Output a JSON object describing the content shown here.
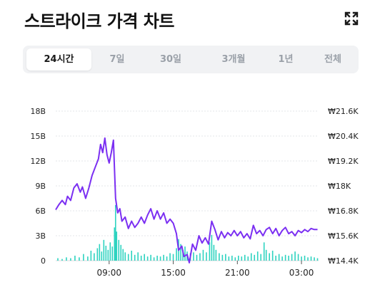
{
  "header": {
    "title": "스트라이크 가격 차트",
    "expand_icon": "expand-icon"
  },
  "tabs": [
    {
      "label": "24시간",
      "active": true
    },
    {
      "label": "7일",
      "active": false
    },
    {
      "label": "30일",
      "active": false
    },
    {
      "label": "3개월",
      "active": false
    },
    {
      "label": "1년",
      "active": false
    },
    {
      "label": "전체",
      "active": false
    }
  ],
  "colors": {
    "price_line": "#7b2ff2",
    "volume_bar": "#2ed3c0",
    "grid": "#e3e5e8"
  },
  "chart_data": {
    "type": "line",
    "x_tick_labels": [
      "09:00",
      "15:00",
      "21:00",
      "03:00"
    ],
    "left_axis": {
      "tick_labels": [
        "18B",
        "15B",
        "12B",
        "9B",
        "6B",
        "3B",
        "0"
      ],
      "ylim": [
        0,
        18
      ]
    },
    "right_axis": {
      "tick_labels": [
        "₩21.6K",
        "₩20.4K",
        "₩19.2K",
        "₩18K",
        "₩16.8K",
        "₩15.6K",
        "₩14.4K"
      ],
      "ylim": [
        14.4,
        21.6
      ]
    },
    "x_hours_range": [
      0,
      24.6
    ],
    "x_tick_hours": [
      5,
      11,
      17,
      23
    ],
    "grid": true,
    "series": [
      {
        "kind": "line",
        "points": [
          [
            0.0,
            16.85
          ],
          [
            0.3,
            17.1
          ],
          [
            0.6,
            17.3
          ],
          [
            0.9,
            17.1
          ],
          [
            1.1,
            17.5
          ],
          [
            1.4,
            17.3
          ],
          [
            1.7,
            17.9
          ],
          [
            2.0,
            18.1
          ],
          [
            2.3,
            17.7
          ],
          [
            2.5,
            17.95
          ],
          [
            2.8,
            17.4
          ],
          [
            3.1,
            17.9
          ],
          [
            3.4,
            18.5
          ],
          [
            3.7,
            18.9
          ],
          [
            4.0,
            19.3
          ],
          [
            4.2,
            20.0
          ],
          [
            4.4,
            19.6
          ],
          [
            4.6,
            20.3
          ],
          [
            4.8,
            19.5
          ],
          [
            5.0,
            19.1
          ],
          [
            5.2,
            19.6
          ],
          [
            5.4,
            20.2
          ],
          [
            5.6,
            17.4
          ],
          [
            5.8,
            16.7
          ],
          [
            6.0,
            16.9
          ],
          [
            6.2,
            16.3
          ],
          [
            6.5,
            16.5
          ],
          [
            6.8,
            15.95
          ],
          [
            7.1,
            16.3
          ],
          [
            7.4,
            16.0
          ],
          [
            7.7,
            16.2
          ],
          [
            8.0,
            16.5
          ],
          [
            8.3,
            16.2
          ],
          [
            8.6,
            16.6
          ],
          [
            8.9,
            16.9
          ],
          [
            9.2,
            16.4
          ],
          [
            9.5,
            16.8
          ],
          [
            9.8,
            16.4
          ],
          [
            10.1,
            16.7
          ],
          [
            10.4,
            16.2
          ],
          [
            10.7,
            16.4
          ],
          [
            11.0,
            16.2
          ],
          [
            11.3,
            15.7
          ],
          [
            11.5,
            14.9
          ],
          [
            11.8,
            15.1
          ],
          [
            12.0,
            14.6
          ],
          [
            12.3,
            14.7
          ],
          [
            12.5,
            14.3
          ],
          [
            12.8,
            15.2
          ],
          [
            13.1,
            14.9
          ],
          [
            13.4,
            15.6
          ],
          [
            13.7,
            15.25
          ],
          [
            14.0,
            15.5
          ],
          [
            14.3,
            15.2
          ],
          [
            14.6,
            16.3
          ],
          [
            14.9,
            15.9
          ],
          [
            15.2,
            15.4
          ],
          [
            15.5,
            15.8
          ],
          [
            15.8,
            15.5
          ],
          [
            16.1,
            15.75
          ],
          [
            16.4,
            15.6
          ],
          [
            16.7,
            15.85
          ],
          [
            17.0,
            15.6
          ],
          [
            17.3,
            15.8
          ],
          [
            17.6,
            15.5
          ],
          [
            17.9,
            15.7
          ],
          [
            18.2,
            15.45
          ],
          [
            18.5,
            16.1
          ],
          [
            18.8,
            15.7
          ],
          [
            19.1,
            15.85
          ],
          [
            19.4,
            15.6
          ],
          [
            19.7,
            15.9
          ],
          [
            20.0,
            16.0
          ],
          [
            20.3,
            15.7
          ],
          [
            20.6,
            15.95
          ],
          [
            20.9,
            15.6
          ],
          [
            21.2,
            15.85
          ],
          [
            21.5,
            16.0
          ],
          [
            21.8,
            15.7
          ],
          [
            22.1,
            15.8
          ],
          [
            22.4,
            15.6
          ],
          [
            22.7,
            15.85
          ],
          [
            23.0,
            15.75
          ],
          [
            23.3,
            15.9
          ],
          [
            23.6,
            15.8
          ],
          [
            23.9,
            15.95
          ],
          [
            24.2,
            15.9
          ],
          [
            24.5,
            15.9
          ]
        ]
      },
      {
        "kind": "bar",
        "points": [
          [
            0.2,
            0.3
          ],
          [
            0.6,
            0.2
          ],
          [
            1.0,
            0.4
          ],
          [
            1.4,
            0.3
          ],
          [
            1.8,
            0.6
          ],
          [
            2.2,
            0.4
          ],
          [
            2.6,
            0.8
          ],
          [
            3.0,
            0.5
          ],
          [
            3.3,
            1.2
          ],
          [
            3.6,
            0.9
          ],
          [
            3.9,
            1.5
          ],
          [
            4.1,
            2.0
          ],
          [
            4.3,
            1.1
          ],
          [
            4.5,
            2.5
          ],
          [
            4.7,
            1.8
          ],
          [
            4.9,
            1.3
          ],
          [
            5.1,
            2.2
          ],
          [
            5.3,
            1.7
          ],
          [
            5.5,
            4.0
          ],
          [
            5.6,
            6.7
          ],
          [
            5.7,
            3.5
          ],
          [
            5.9,
            2.5
          ],
          [
            6.1,
            1.9
          ],
          [
            6.3,
            1.4
          ],
          [
            6.5,
            1.0
          ],
          [
            6.8,
            0.8
          ],
          [
            7.1,
            1.2
          ],
          [
            7.4,
            0.7
          ],
          [
            7.7,
            1.0
          ],
          [
            8.0,
            0.6
          ],
          [
            8.3,
            0.8
          ],
          [
            8.6,
            0.5
          ],
          [
            8.9,
            0.7
          ],
          [
            9.2,
            0.4
          ],
          [
            9.5,
            0.6
          ],
          [
            9.8,
            0.5
          ],
          [
            10.1,
            0.7
          ],
          [
            10.4,
            0.5
          ],
          [
            10.7,
            0.9
          ],
          [
            11.0,
            0.8
          ],
          [
            11.3,
            1.5
          ],
          [
            11.5,
            2.6
          ],
          [
            11.7,
            2.0
          ],
          [
            11.9,
            1.3
          ],
          [
            12.1,
            1.7
          ],
          [
            12.3,
            1.1
          ],
          [
            12.6,
            0.9
          ],
          [
            12.9,
            1.0
          ],
          [
            13.2,
            0.7
          ],
          [
            13.5,
            0.9
          ],
          [
            13.8,
            1.3
          ],
          [
            14.1,
            1.0
          ],
          [
            14.4,
            2.2
          ],
          [
            14.6,
            3.1
          ],
          [
            14.8,
            1.9
          ],
          [
            15.0,
            1.3
          ],
          [
            15.3,
            0.9
          ],
          [
            15.6,
            0.7
          ],
          [
            15.9,
            0.8
          ],
          [
            16.2,
            0.5
          ],
          [
            16.5,
            0.6
          ],
          [
            16.8,
            0.4
          ],
          [
            17.1,
            0.6
          ],
          [
            17.4,
            0.5
          ],
          [
            17.7,
            0.7
          ],
          [
            18.0,
            0.5
          ],
          [
            18.3,
            0.9
          ],
          [
            18.6,
            0.7
          ],
          [
            18.9,
            1.1
          ],
          [
            19.2,
            0.8
          ],
          [
            19.5,
            2.2
          ],
          [
            19.7,
            1.3
          ],
          [
            20.0,
            0.9
          ],
          [
            20.3,
            1.2
          ],
          [
            20.6,
            0.6
          ],
          [
            20.9,
            0.8
          ],
          [
            21.2,
            0.5
          ],
          [
            21.5,
            0.7
          ],
          [
            21.8,
            0.6
          ],
          [
            22.1,
            0.8
          ],
          [
            22.4,
            1.1
          ],
          [
            22.7,
            0.8
          ],
          [
            23.0,
            0.5
          ],
          [
            23.3,
            0.6
          ],
          [
            23.6,
            0.4
          ],
          [
            23.9,
            0.5
          ],
          [
            24.2,
            0.4
          ],
          [
            24.5,
            0.3
          ]
        ]
      }
    ]
  }
}
